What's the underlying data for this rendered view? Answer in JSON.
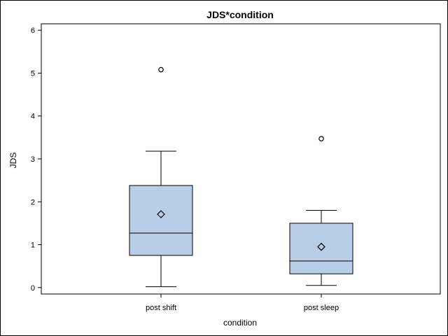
{
  "chart_data": {
    "type": "boxplot",
    "title": "JDS*condition",
    "xlabel": "condition",
    "ylabel": "JDS",
    "ylim": [
      -0.15,
      6.15
    ],
    "yticks": [
      "0",
      "1",
      "2",
      "3",
      "4",
      "5",
      "6"
    ],
    "ytick_values": [
      0,
      1,
      2,
      3,
      4,
      5,
      6
    ],
    "categories": [
      "post shift",
      "post sleep"
    ],
    "boxes": [
      {
        "category": "post shift",
        "min": 0.02,
        "q1": 0.75,
        "median": 1.27,
        "q3": 2.38,
        "max": 3.18,
        "mean": 1.71,
        "outliers": [
          5.08
        ]
      },
      {
        "category": "post sleep",
        "min": 0.05,
        "q1": 0.32,
        "median": 0.62,
        "q3": 1.5,
        "max": 1.8,
        "mean": 0.95,
        "outliers": [
          3.47
        ]
      }
    ],
    "grid": false,
    "colors": {
      "box_fill": "#b8cde6",
      "line": "#000000"
    }
  }
}
